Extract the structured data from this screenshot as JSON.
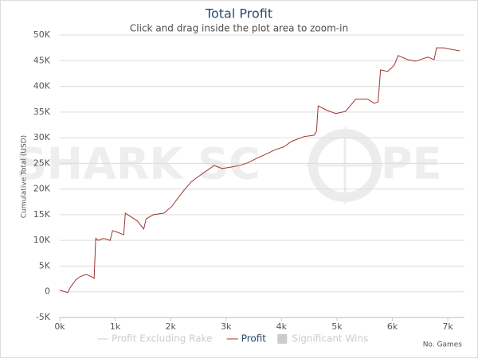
{
  "chart_data": {
    "type": "line",
    "title": "Total Profit",
    "subtitle": "Click and drag inside the plot area to zoom-in",
    "y_label": "Cumulative Total (USD)",
    "x_label": "No. Games",
    "watermark": [
      "SHARK SC",
      "PE"
    ],
    "xlim": [
      0,
      7300
    ],
    "ylim": [
      -5000,
      50000
    ],
    "xticks": [
      {
        "value": 0,
        "label": "0k"
      },
      {
        "value": 1000,
        "label": "1k"
      },
      {
        "value": 2000,
        "label": "2k"
      },
      {
        "value": 3000,
        "label": "3k"
      },
      {
        "value": 4000,
        "label": "4k"
      },
      {
        "value": 5000,
        "label": "5k"
      },
      {
        "value": 6000,
        "label": "6k"
      },
      {
        "value": 7000,
        "label": "7k"
      }
    ],
    "yticks": [
      {
        "value": -5000,
        "label": "-5K"
      },
      0,
      {
        "value": 5000,
        "label": "5K"
      },
      {
        "value": 10000,
        "label": "10K"
      },
      {
        "value": 15000,
        "label": "15K"
      },
      {
        "value": 20000,
        "label": "20K"
      },
      {
        "value": 25000,
        "label": "25K"
      },
      {
        "value": 30000,
        "label": "30K"
      },
      {
        "value": 35000,
        "label": "35K"
      },
      {
        "value": 40000,
        "label": "40K"
      },
      {
        "value": 45000,
        "label": "45K"
      },
      {
        "value": 50000,
        "label": "50K"
      }
    ],
    "grid": true,
    "series": [
      {
        "name": "Profit Excluding Rake",
        "color": "#cccccc",
        "visible": false
      },
      {
        "name": "Profit",
        "color": "#a0342f",
        "visible": true,
        "x": [
          0,
          144,
          188,
          289,
          361,
          476,
          577,
          620,
          649,
          693,
          794,
          909,
          952,
          1039,
          1154,
          1183,
          1270,
          1400,
          1515,
          1558,
          1688,
          1876,
          2020,
          2121,
          2237,
          2381,
          2497,
          2641,
          2785,
          2929,
          3102,
          3247,
          3391,
          3535,
          3680,
          3896,
          4040,
          4185,
          4401,
          4589,
          4632,
          4661,
          4805,
          4978,
          5152,
          5339,
          5556,
          5671,
          5743,
          5786,
          5916,
          6032,
          6104,
          6277,
          6421,
          6638,
          6753,
          6797,
          6926,
          7071,
          7215
        ],
        "values": [
          300,
          -150,
          800,
          2300,
          2900,
          3400,
          2900,
          2600,
          10400,
          10000,
          10400,
          10000,
          11900,
          11600,
          11100,
          15300,
          14700,
          13800,
          12200,
          14200,
          15000,
          15300,
          16600,
          18100,
          19700,
          21500,
          22400,
          23500,
          24600,
          24000,
          24300,
          24600,
          25100,
          25900,
          26600,
          27700,
          28200,
          29300,
          30200,
          30500,
          31300,
          36200,
          35400,
          34700,
          35100,
          37500,
          37500,
          36700,
          37000,
          43200,
          42900,
          44100,
          46000,
          45200,
          44900,
          45700,
          45200,
          47500,
          47500,
          47200,
          46900
        ]
      },
      {
        "name": "Significant Wins",
        "color": "#cccccc",
        "visible": false,
        "symbol": "box"
      }
    ]
  }
}
